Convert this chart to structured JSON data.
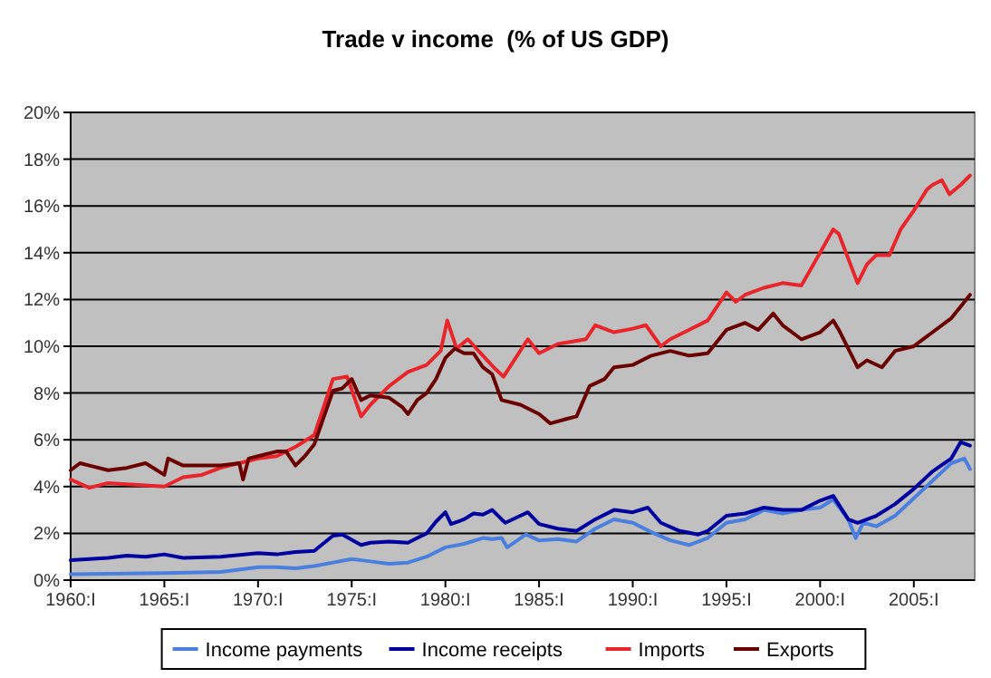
{
  "chart_data": {
    "type": "line",
    "title": "Trade v income  (% of US GDP)",
    "xlim": [
      1960,
      2008.25
    ],
    "xticks": [
      {
        "value": 1960,
        "label": "1960:I"
      },
      {
        "value": 1965,
        "label": "1965:I"
      },
      {
        "value": 1970,
        "label": "1970:I"
      },
      {
        "value": 1975,
        "label": "1975:I"
      },
      {
        "value": 1980,
        "label": "1980:I"
      },
      {
        "value": 1985,
        "label": "1985:I"
      },
      {
        "value": 1990,
        "label": "1990:I"
      },
      {
        "value": 1995,
        "label": "1995:I"
      },
      {
        "value": 2000,
        "label": "2000:I"
      },
      {
        "value": 2005,
        "label": "2005:I"
      }
    ],
    "ylim": [
      0,
      20
    ],
    "yticks": [
      {
        "value": 0,
        "label": "0%"
      },
      {
        "value": 2,
        "label": "2%"
      },
      {
        "value": 4,
        "label": "4%"
      },
      {
        "value": 6,
        "label": "6%"
      },
      {
        "value": 8,
        "label": "8%"
      },
      {
        "value": 10,
        "label": "10%"
      },
      {
        "value": 12,
        "label": "12%"
      },
      {
        "value": 14,
        "label": "14%"
      },
      {
        "value": 16,
        "label": "16%"
      },
      {
        "value": 18,
        "label": "18%"
      },
      {
        "value": 20,
        "label": "20%"
      }
    ],
    "grid": "y",
    "legend": "bottom",
    "marker": "none",
    "line_style": "solid",
    "series": [
      {
        "name": "Income payments",
        "color": "#4a7fe0",
        "x": [
          1960,
          1965,
          1968,
          1970,
          1971,
          1972,
          1973,
          1974,
          1975,
          1976,
          1977,
          1978,
          1979,
          1980,
          1981,
          1982,
          1982.5,
          1983,
          1983.3,
          1984.3,
          1985,
          1986,
          1987,
          1988,
          1989,
          1990,
          1991,
          1992,
          1993,
          1994,
          1995,
          1996,
          1997,
          1998,
          1999,
          2000,
          2000.7,
          2001.5,
          2001.9,
          2002.3,
          2003,
          2004,
          2005,
          2006,
          2007,
          2007.7,
          2008
        ],
        "values": [
          0.25,
          0.3,
          0.35,
          0.55,
          0.55,
          0.5,
          0.6,
          0.75,
          0.9,
          0.8,
          0.7,
          0.75,
          1.0,
          1.4,
          1.55,
          1.8,
          1.75,
          1.8,
          1.4,
          1.95,
          1.7,
          1.75,
          1.65,
          2.2,
          2.6,
          2.45,
          2.05,
          1.7,
          1.5,
          1.8,
          2.45,
          2.6,
          3.0,
          2.85,
          3.0,
          3.1,
          3.45,
          2.6,
          1.8,
          2.45,
          2.3,
          2.75,
          3.5,
          4.25,
          5.0,
          5.2,
          4.75
        ]
      },
      {
        "name": "Income receipts",
        "color": "#0000a0",
        "x": [
          1960,
          1962,
          1963,
          1964,
          1965,
          1966,
          1968,
          1970,
          1971,
          1972,
          1973,
          1974,
          1974.5,
          1975.5,
          1976,
          1977,
          1978,
          1978.5,
          1979,
          1979.5,
          1980,
          1980.3,
          1981,
          1981.5,
          1982,
          1982.5,
          1983,
          1983.2,
          1984,
          1984.4,
          1985,
          1986,
          1987,
          1988,
          1989,
          1990,
          1990.8,
          1991.5,
          1992.5,
          1993.5,
          1994,
          1995,
          1996,
          1997,
          1998,
          1999,
          2000,
          2000.7,
          2001.5,
          2002,
          2003,
          2004,
          2005,
          2006,
          2007,
          2007.5,
          2008
        ],
        "values": [
          0.85,
          0.95,
          1.05,
          1.0,
          1.1,
          0.95,
          1.0,
          1.15,
          1.1,
          1.2,
          1.25,
          1.9,
          1.95,
          1.5,
          1.6,
          1.65,
          1.6,
          1.8,
          2.0,
          2.5,
          2.9,
          2.4,
          2.6,
          2.85,
          2.8,
          3.0,
          2.6,
          2.45,
          2.75,
          2.9,
          2.4,
          2.2,
          2.1,
          2.6,
          3.0,
          2.9,
          3.1,
          2.45,
          2.1,
          1.95,
          2.1,
          2.75,
          2.85,
          3.1,
          3.0,
          3.0,
          3.4,
          3.6,
          2.6,
          2.45,
          2.75,
          3.25,
          3.9,
          4.65,
          5.2,
          5.9,
          5.75
        ]
      },
      {
        "name": "Imports",
        "color": "#e8252a",
        "x": [
          1960,
          1961,
          1962,
          1963,
          1964,
          1965,
          1966,
          1967,
          1968,
          1969,
          1970,
          1971,
          1972,
          1973,
          1974,
          1974.75,
          1975.5,
          1976,
          1977,
          1978,
          1979,
          1979.75,
          1980.1,
          1980.6,
          1981.2,
          1982,
          1982.7,
          1983.1,
          1984.4,
          1985,
          1986,
          1987.5,
          1988,
          1989,
          1990,
          1990.7,
          1991.5,
          1992,
          1993,
          1994,
          1995,
          1995.5,
          1996,
          1997,
          1998,
          1999,
          2000,
          2000.7,
          2001,
          2002,
          2002.5,
          2003,
          2003.7,
          2004.3,
          2005,
          2005.7,
          2006,
          2006.5,
          2006.9,
          2007.5,
          2008
        ],
        "values": [
          4.3,
          3.95,
          4.15,
          4.1,
          4.05,
          4.0,
          4.4,
          4.5,
          4.8,
          5.0,
          5.2,
          5.3,
          5.7,
          6.2,
          8.6,
          8.7,
          7.0,
          7.5,
          8.3,
          8.9,
          9.2,
          9.8,
          11.1,
          9.9,
          10.3,
          9.6,
          9.0,
          8.7,
          10.3,
          9.7,
          10.1,
          10.3,
          10.9,
          10.6,
          10.75,
          10.9,
          10.0,
          10.3,
          10.7,
          11.1,
          12.3,
          11.9,
          12.2,
          12.5,
          12.7,
          12.6,
          14.0,
          15.0,
          14.8,
          12.7,
          13.5,
          13.9,
          13.9,
          15.0,
          15.8,
          16.7,
          16.9,
          17.1,
          16.5,
          16.9,
          17.3
        ]
      },
      {
        "name": "Exports",
        "color": "#6b0000",
        "x": [
          1960,
          1960.5,
          1961,
          1962,
          1963,
          1964,
          1965,
          1965.2,
          1966,
          1967,
          1968,
          1969,
          1969.2,
          1969.5,
          1970,
          1971,
          1971.5,
          1972,
          1972.5,
          1973,
          1974,
          1974.5,
          1975,
          1975.5,
          1976,
          1977,
          1977.7,
          1978,
          1978.5,
          1979,
          1979.5,
          1980,
          1980.5,
          1981,
          1981.5,
          1982,
          1982.5,
          1983,
          1984,
          1985,
          1985.6,
          1986.5,
          1987,
          1987.7,
          1988.5,
          1989,
          1990,
          1991,
          1992,
          1993,
          1994,
          1995,
          1996,
          1996.7,
          1997.5,
          1998,
          1999,
          2000,
          2000.7,
          2001,
          2002,
          2002.5,
          2003.3,
          2004,
          2005,
          2006,
          2007,
          2007.5,
          2008
        ],
        "values": [
          4.7,
          5.0,
          4.9,
          4.7,
          4.8,
          5.0,
          4.5,
          5.2,
          4.9,
          4.9,
          4.9,
          5.0,
          4.3,
          5.2,
          5.3,
          5.5,
          5.5,
          4.9,
          5.3,
          5.8,
          8.1,
          8.2,
          8.6,
          7.7,
          7.9,
          7.8,
          7.4,
          7.1,
          7.7,
          8.0,
          8.6,
          9.5,
          9.9,
          9.7,
          9.7,
          9.1,
          8.8,
          7.7,
          7.5,
          7.1,
          6.7,
          6.9,
          7.0,
          8.3,
          8.6,
          9.1,
          9.2,
          9.6,
          9.8,
          9.6,
          9.7,
          10.7,
          11.0,
          10.7,
          11.4,
          10.9,
          10.3,
          10.6,
          11.1,
          10.7,
          9.1,
          9.4,
          9.1,
          9.8,
          10.0,
          10.6,
          11.2,
          11.7,
          12.2
        ]
      }
    ]
  }
}
